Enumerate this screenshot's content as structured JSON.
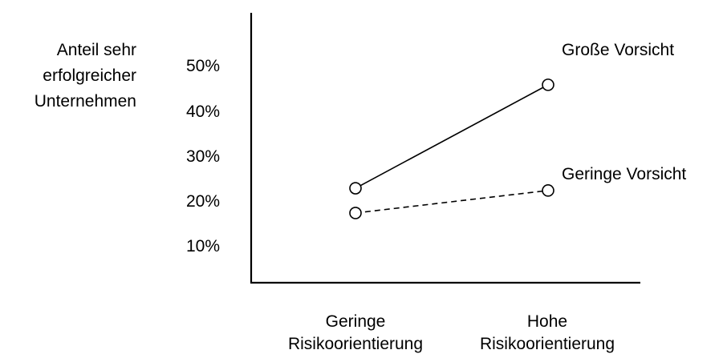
{
  "chart_data": {
    "type": "line",
    "ylabel_lines": [
      "Anteil sehr",
      "erfolgreicher",
      "Unternehmen"
    ],
    "xlabel": "",
    "y_ticks": [
      "50%",
      "40%",
      "30%",
      "20%",
      "10%"
    ],
    "y_tick_values": [
      50,
      40,
      30,
      20,
      10
    ],
    "ylim": [
      2,
      62
    ],
    "categories": [
      [
        "Geringe",
        "Risikoorientierung"
      ],
      [
        "Hohe",
        "Risikoorientierung"
      ]
    ],
    "series": [
      {
        "name": "Große Vorsicht",
        "values": [
          23,
          46
        ],
        "line_style": "solid"
      },
      {
        "name": "Geringe Vorsicht",
        "values": [
          17.5,
          22.5
        ],
        "line_style": "dashed"
      }
    ],
    "grid": false,
    "legend": "inline-at-line-end",
    "colors": {
      "line": "#000000",
      "marker_fill": "#ffffff"
    }
  }
}
